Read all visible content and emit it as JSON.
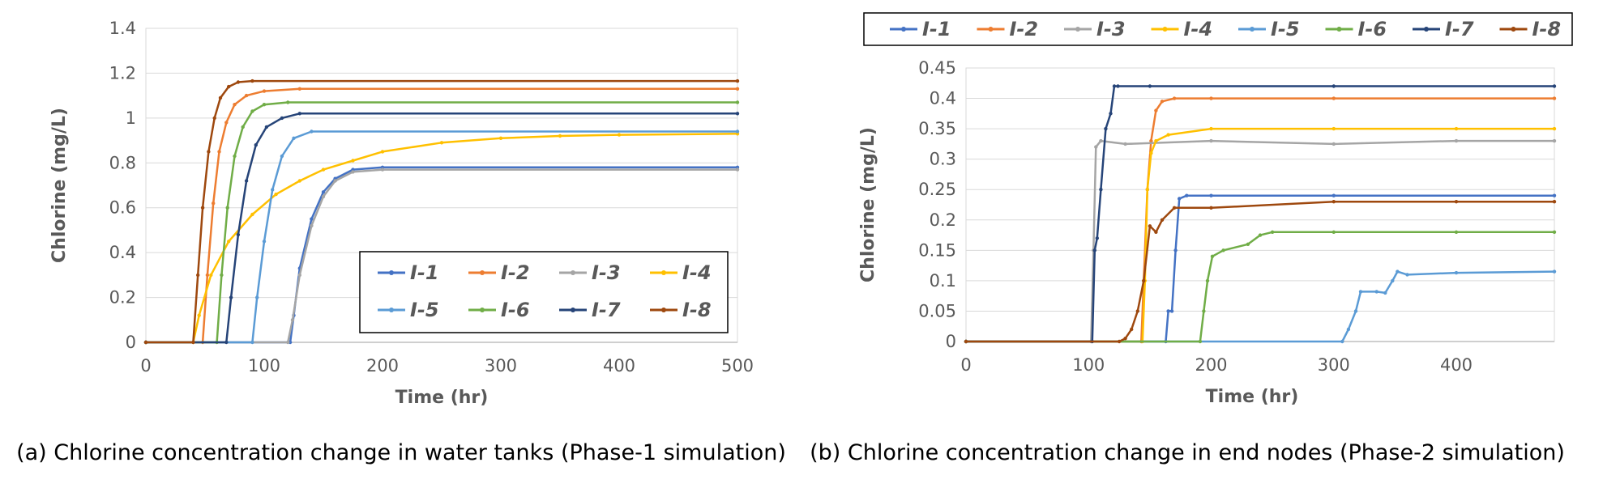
{
  "chart_data": [
    {
      "type": "line",
      "title": "",
      "caption": "(a) Chlorine concentration change in water tanks (Phase-1 simulation)",
      "xlabel": "Time (hr)",
      "ylabel": "Chlorine (mg/L)",
      "xlim": [
        0,
        500
      ],
      "ylim": [
        0,
        1.4
      ],
      "xticks": [
        0,
        100,
        200,
        300,
        400,
        500
      ],
      "yticks": [
        0,
        0.2,
        0.4,
        0.6,
        0.8,
        1,
        1.2,
        1.4
      ],
      "grid": "horizontal",
      "legend": "bottom-right",
      "series": [
        {
          "name": "I-1",
          "color": "#4472C4",
          "x": [
            0,
            122,
            125,
            130,
            140,
            150,
            160,
            175,
            200,
            500
          ],
          "y": [
            0,
            0,
            0.12,
            0.33,
            0.55,
            0.67,
            0.73,
            0.77,
            0.78,
            0.78
          ]
        },
        {
          "name": "I-2",
          "color": "#ED7D31",
          "x": [
            0,
            48,
            52,
            57,
            62,
            68,
            75,
            85,
            100,
            130,
            500
          ],
          "y": [
            0,
            0,
            0.3,
            0.62,
            0.85,
            0.98,
            1.06,
            1.1,
            1.12,
            1.13,
            1.13
          ]
        },
        {
          "name": "I-3",
          "color": "#A5A5A5",
          "x": [
            0,
            120,
            124,
            130,
            140,
            150,
            160,
            175,
            200,
            500
          ],
          "y": [
            0,
            0,
            0.1,
            0.3,
            0.52,
            0.65,
            0.72,
            0.76,
            0.77,
            0.77
          ]
        },
        {
          "name": "I-4",
          "color": "#FFC000",
          "x": [
            0,
            40,
            45,
            55,
            70,
            90,
            110,
            130,
            150,
            175,
            200,
            250,
            300,
            350,
            400,
            500
          ],
          "y": [
            0,
            0,
            0.12,
            0.3,
            0.45,
            0.57,
            0.66,
            0.72,
            0.77,
            0.81,
            0.85,
            0.89,
            0.91,
            0.92,
            0.925,
            0.93
          ]
        },
        {
          "name": "I-5",
          "color": "#5B9BD5",
          "x": [
            0,
            90,
            94,
            100,
            107,
            115,
            125,
            140,
            500
          ],
          "y": [
            0,
            0,
            0.2,
            0.45,
            0.68,
            0.83,
            0.91,
            0.94,
            0.94
          ]
        },
        {
          "name": "I-6",
          "color": "#70AD47",
          "x": [
            0,
            60,
            64,
            69,
            75,
            82,
            90,
            100,
            120,
            500
          ],
          "y": [
            0,
            0,
            0.3,
            0.6,
            0.83,
            0.96,
            1.03,
            1.06,
            1.07,
            1.07
          ]
        },
        {
          "name": "I-7",
          "color": "#264478",
          "x": [
            0,
            68,
            72,
            78,
            85,
            93,
            102,
            115,
            130,
            500
          ],
          "y": [
            0,
            0,
            0.2,
            0.48,
            0.72,
            0.88,
            0.96,
            1.0,
            1.02,
            1.02
          ]
        },
        {
          "name": "I-8",
          "color": "#9E480E",
          "x": [
            0,
            40,
            44,
            48,
            53,
            58,
            63,
            70,
            78,
            90,
            500
          ],
          "y": [
            0,
            0,
            0.3,
            0.6,
            0.85,
            1.0,
            1.09,
            1.14,
            1.16,
            1.165,
            1.165
          ]
        }
      ]
    },
    {
      "type": "line",
      "title": "",
      "caption": "(b) Chlorine concentration change in end nodes (Phase-2 simulation)",
      "xlabel": "Time (hr)",
      "ylabel": "Chlorine (mg/L)",
      "xlim": [
        0,
        480
      ],
      "ylim": [
        0,
        0.45
      ],
      "xticks": [
        0,
        100,
        200,
        300,
        400
      ],
      "yticks": [
        0,
        0.05,
        0.1,
        0.15,
        0.2,
        0.25,
        0.3,
        0.35,
        0.4,
        0.45
      ],
      "grid": "horizontal",
      "legend": "top",
      "series": [
        {
          "name": "I-1",
          "color": "#4472C4",
          "x": [
            0,
            163,
            165,
            168,
            171,
            174,
            180,
            200,
            300,
            480
          ],
          "y": [
            0,
            0,
            0.05,
            0.05,
            0.15,
            0.235,
            0.24,
            0.24,
            0.24,
            0.24
          ]
        },
        {
          "name": "I-2",
          "color": "#ED7D31",
          "x": [
            0,
            143,
            145,
            148,
            151,
            155,
            160,
            170,
            200,
            300,
            480
          ],
          "y": [
            0,
            0,
            0.1,
            0.25,
            0.33,
            0.38,
            0.395,
            0.4,
            0.4,
            0.4,
            0.4
          ]
        },
        {
          "name": "I-3",
          "color": "#A5A5A5",
          "x": [
            0,
            102,
            104,
            106,
            110,
            130,
            200,
            300,
            400,
            480
          ],
          "y": [
            0,
            0,
            0.15,
            0.32,
            0.33,
            0.325,
            0.33,
            0.325,
            0.33,
            0.33
          ]
        },
        {
          "name": "I-4",
          "color": "#FFC000",
          "x": [
            0,
            144,
            146,
            148,
            151,
            155,
            165,
            200,
            300,
            400,
            480
          ],
          "y": [
            0,
            0,
            0.1,
            0.25,
            0.31,
            0.33,
            0.34,
            0.35,
            0.35,
            0.35,
            0.35
          ]
        },
        {
          "name": "I-5",
          "color": "#5B9BD5",
          "x": [
            0,
            307,
            312,
            318,
            322,
            335,
            342,
            348,
            352,
            360,
            400,
            480
          ],
          "y": [
            0,
            0,
            0.02,
            0.05,
            0.082,
            0.082,
            0.08,
            0.1,
            0.115,
            0.11,
            0.113,
            0.115
          ]
        },
        {
          "name": "I-6",
          "color": "#70AD47",
          "x": [
            0,
            191,
            194,
            197,
            201,
            210,
            230,
            240,
            250,
            300,
            400,
            480
          ],
          "y": [
            0,
            0,
            0.05,
            0.1,
            0.14,
            0.15,
            0.16,
            0.175,
            0.18,
            0.18,
            0.18,
            0.18
          ]
        },
        {
          "name": "I-7",
          "color": "#264478",
          "x": [
            0,
            103,
            105,
            107,
            110,
            114,
            118,
            121,
            124,
            150,
            300,
            480
          ],
          "y": [
            0,
            0,
            0.15,
            0.17,
            0.25,
            0.35,
            0.375,
            0.42,
            0.42,
            0.42,
            0.42,
            0.42
          ]
        },
        {
          "name": "I-8",
          "color": "#9E480E",
          "x": [
            0,
            125,
            130,
            135,
            140,
            145,
            150,
            155,
            160,
            170,
            200,
            300,
            400,
            480
          ],
          "y": [
            0,
            0,
            0.005,
            0.02,
            0.05,
            0.1,
            0.19,
            0.18,
            0.2,
            0.22,
            0.22,
            0.23,
            0.23,
            0.23
          ]
        }
      ]
    }
  ]
}
